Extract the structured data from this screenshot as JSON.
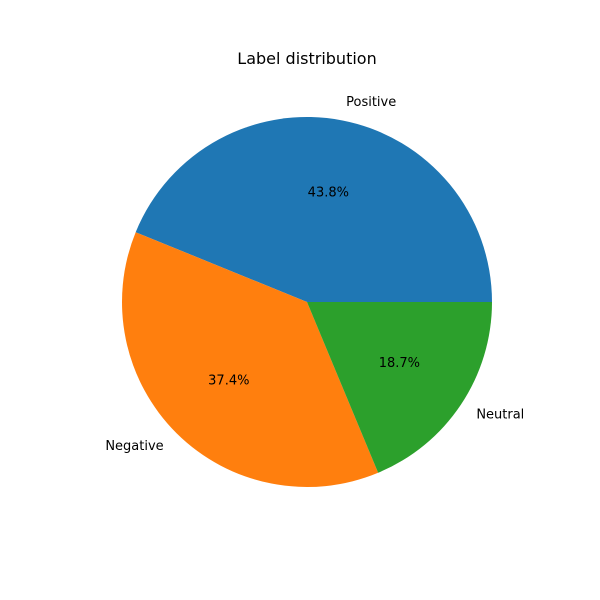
{
  "chart_data": {
    "type": "pie",
    "title": "Label distribution",
    "slices": [
      {
        "label": "Positive",
        "value": 43.8,
        "pct_label": "43.8%",
        "color": "#1f77b4"
      },
      {
        "label": "Negative",
        "value": 37.4,
        "pct_label": "37.4%",
        "color": "#ff7f0e"
      },
      {
        "label": "Neutral",
        "value": 18.7,
        "pct_label": "18.7%",
        "color": "#2ca02c"
      }
    ],
    "start_angle_deg": 0,
    "direction": "counterclockwise",
    "legend": "none"
  }
}
